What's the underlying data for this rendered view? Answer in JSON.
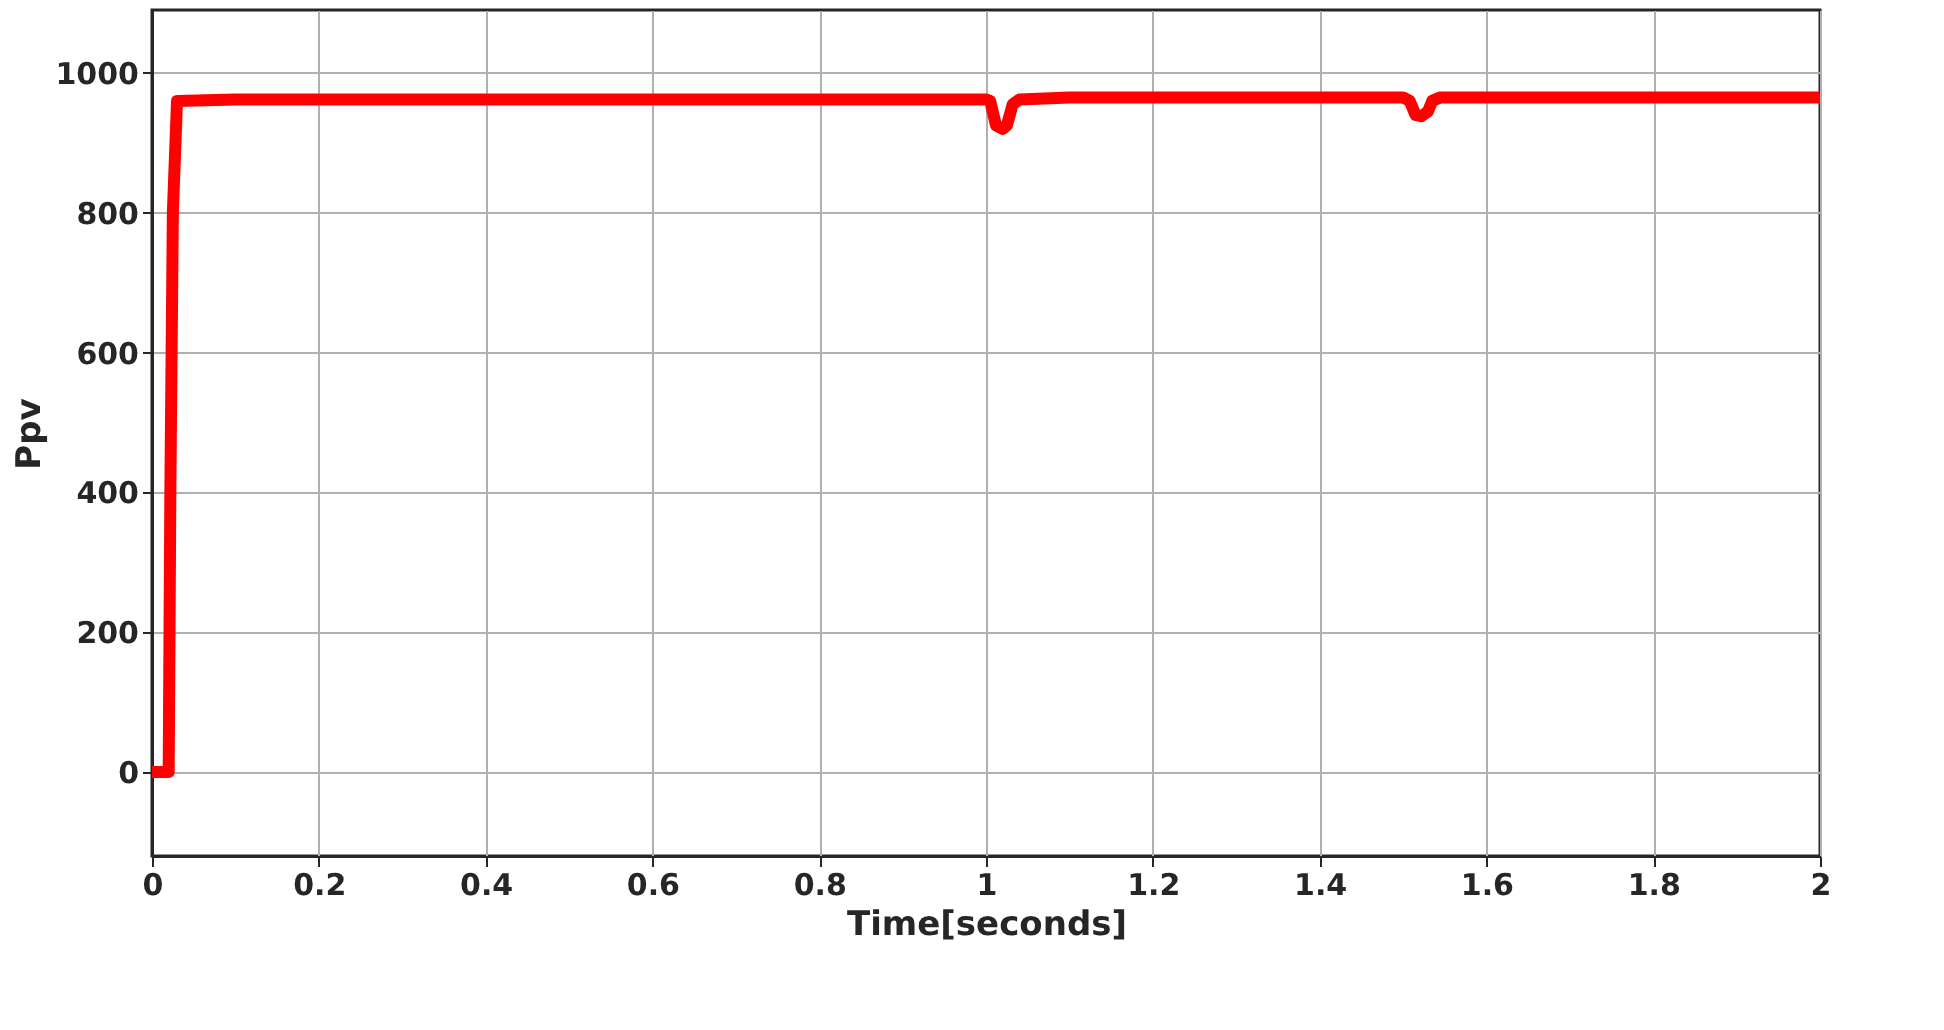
{
  "chart_data": {
    "type": "line",
    "xlabel": "Time[seconds]",
    "ylabel": "Ppv",
    "series": [
      {
        "color": "#ff0000",
        "x": [
          0,
          0.02,
          0.022,
          0.025,
          0.03,
          0.1,
          0.3,
          0.5,
          0.7,
          0.9,
          1.0,
          1.005,
          1.012,
          1.02,
          1.025,
          1.032,
          1.04,
          1.1,
          1.3,
          1.5,
          1.508,
          1.515,
          1.522,
          1.53,
          1.535,
          1.545,
          1.7,
          1.9,
          2.0
        ],
        "values": [
          0,
          0,
          400,
          800,
          960,
          962,
          962,
          962,
          962,
          962,
          962,
          960,
          925,
          920,
          925,
          955,
          962,
          965,
          965,
          965,
          960,
          940,
          938,
          945,
          960,
          965,
          965,
          965,
          965
        ]
      }
    ],
    "xlim": [
      0,
      2
    ],
    "ylim": [
      -120,
      1090
    ],
    "xticks": [
      0,
      0.2,
      0.4,
      0.6,
      0.8,
      1,
      1.2,
      1.4,
      1.6,
      1.8,
      2
    ],
    "yticks": [
      0,
      200,
      400,
      600,
      800,
      1000
    ],
    "grid": true,
    "line_style": "solid",
    "marker": "none"
  }
}
